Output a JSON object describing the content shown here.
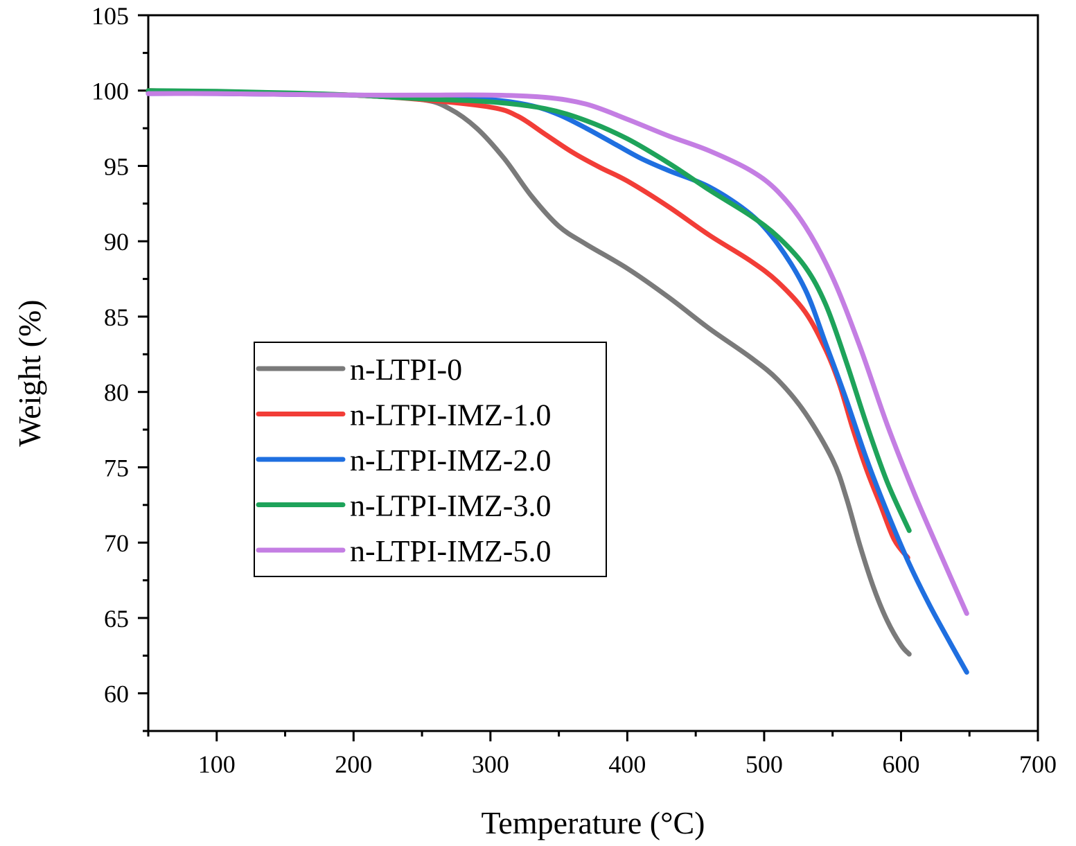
{
  "chart_data": {
    "type": "line",
    "xlabel": "Temperature (°C)",
    "ylabel": "Weight (%)",
    "xlim": [
      50,
      700
    ],
    "ylim": [
      57.5,
      105
    ],
    "x_ticks": [
      100,
      200,
      300,
      400,
      500,
      600,
      700
    ],
    "y_ticks": [
      60,
      65,
      70,
      75,
      80,
      85,
      90,
      95,
      100,
      105
    ],
    "x_minor_step": 50,
    "y_minor_step": 2.5,
    "grid": false,
    "legend_position": "center-left",
    "series": [
      {
        "name": "n-LTPI-0",
        "color": "#7a7a7a",
        "x": [
          50,
          100,
          150,
          200,
          250,
          270,
          290,
          310,
          330,
          350,
          370,
          400,
          430,
          460,
          490,
          510,
          530,
          550,
          560,
          570,
          580,
          590,
          600,
          606
        ],
        "y": [
          99.9,
          99.85,
          99.8,
          99.7,
          99.4,
          98.8,
          97.5,
          95.5,
          93.0,
          91.0,
          89.8,
          88.2,
          86.3,
          84.2,
          82.3,
          80.8,
          78.6,
          75.5,
          73.0,
          69.8,
          67.0,
          64.8,
          63.2,
          62.6
        ]
      },
      {
        "name": "n-LTPI-IMZ-1.0",
        "color": "#f23d37",
        "x": [
          50,
          100,
          150,
          200,
          250,
          300,
          320,
          340,
          360,
          380,
          400,
          430,
          460,
          490,
          510,
          530,
          545,
          555,
          565,
          575,
          585,
          595,
          605
        ],
        "y": [
          100.0,
          99.9,
          99.8,
          99.7,
          99.4,
          98.9,
          98.3,
          97.1,
          95.9,
          94.9,
          94.0,
          92.3,
          90.4,
          88.7,
          87.3,
          85.3,
          82.8,
          80.5,
          77.5,
          74.8,
          72.5,
          70.2,
          69.0
        ]
      },
      {
        "name": "n-LTPI-IMZ-2.0",
        "color": "#1f6fe0",
        "x": [
          50,
          100,
          150,
          200,
          250,
          300,
          330,
          350,
          370,
          390,
          410,
          430,
          460,
          490,
          510,
          530,
          545,
          560,
          575,
          590,
          605,
          620,
          635,
          648
        ],
        "y": [
          99.8,
          99.8,
          99.75,
          99.7,
          99.6,
          99.4,
          99.0,
          98.4,
          97.5,
          96.5,
          95.5,
          94.7,
          93.6,
          91.8,
          89.8,
          86.8,
          83.2,
          79.5,
          75.5,
          72.0,
          68.8,
          66.0,
          63.5,
          61.4
        ]
      },
      {
        "name": "n-LTPI-IMZ-3.0",
        "color": "#1ea35a",
        "x": [
          50,
          100,
          150,
          200,
          250,
          300,
          340,
          370,
          400,
          430,
          460,
          490,
          510,
          530,
          545,
          560,
          575,
          590,
          606
        ],
        "y": [
          100.0,
          99.95,
          99.85,
          99.7,
          99.45,
          99.25,
          98.8,
          98.0,
          96.8,
          95.2,
          93.4,
          91.7,
          90.3,
          88.3,
          85.8,
          82.0,
          77.8,
          74.0,
          70.8
        ]
      },
      {
        "name": "n-LTPI-IMZ-5.0",
        "color": "#c47ee3",
        "x": [
          50,
          100,
          150,
          200,
          250,
          300,
          340,
          370,
          400,
          430,
          460,
          490,
          510,
          530,
          550,
          570,
          590,
          610,
          630,
          648
        ],
        "y": [
          99.8,
          99.8,
          99.75,
          99.7,
          99.7,
          99.7,
          99.55,
          99.1,
          98.1,
          97.0,
          96.0,
          94.7,
          93.3,
          91.0,
          87.6,
          83.0,
          77.8,
          73.2,
          69.0,
          65.3
        ]
      }
    ]
  }
}
